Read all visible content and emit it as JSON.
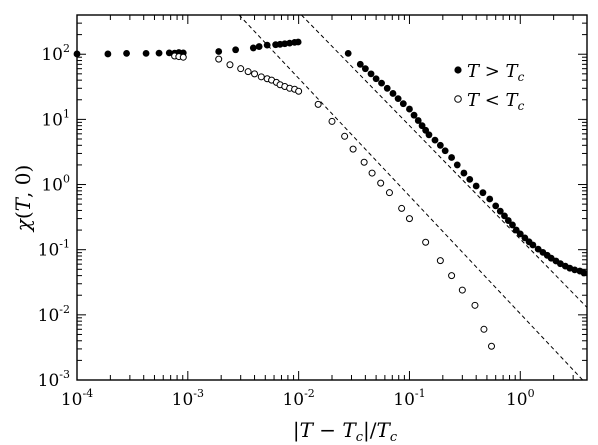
{
  "chart_data": {
    "type": "scatter",
    "x_scale": "log",
    "y_scale": "log",
    "xlim": [
      0.0001,
      4
    ],
    "ylim": [
      0.001,
      400
    ],
    "xlabel": "|T − T_c|/T_c",
    "ylabel": "χ(T, 0)",
    "x_ticks": [
      {
        "value": 0.0001,
        "base": "10",
        "exp": "-4"
      },
      {
        "value": 0.001,
        "base": "10",
        "exp": "-3"
      },
      {
        "value": 0.01,
        "base": "10",
        "exp": "-2"
      },
      {
        "value": 0.1,
        "base": "10",
        "exp": "-1"
      },
      {
        "value": 1,
        "base": "10",
        "exp": "0"
      }
    ],
    "y_ticks": [
      {
        "value": 0.001,
        "base": "10",
        "exp": "-3"
      },
      {
        "value": 0.01,
        "base": "10",
        "exp": "-2"
      },
      {
        "value": 0.1,
        "base": "10",
        "exp": "-1"
      },
      {
        "value": 1,
        "base": "10",
        "exp": "0"
      },
      {
        "value": 10,
        "base": "10",
        "exp": "1"
      },
      {
        "value": 100,
        "base": "10",
        "exp": "2"
      }
    ],
    "grid": false,
    "legend_position": "top-right",
    "series": [
      {
        "name": "T > T_c",
        "marker": "filled-circle",
        "color": "#000000",
        "points": [
          [
            0.0001,
            101
          ],
          [
            0.00019,
            101
          ],
          [
            0.00028,
            103
          ],
          [
            0.00042,
            103
          ],
          [
            0.00055,
            104
          ],
          [
            0.00068,
            105
          ],
          [
            0.00076,
            104
          ],
          [
            0.00083,
            106
          ],
          [
            0.00091,
            105
          ],
          [
            0.0019,
            110
          ],
          [
            0.0027,
            117
          ],
          [
            0.0039,
            125
          ],
          [
            0.0044,
            131
          ],
          [
            0.0052,
            138
          ],
          [
            0.0062,
            140
          ],
          [
            0.0068,
            142
          ],
          [
            0.0075,
            145
          ],
          [
            0.0083,
            148
          ],
          [
            0.0092,
            152
          ],
          [
            0.0099,
            154
          ],
          [
            0.028,
            103
          ],
          [
            0.036,
            70
          ],
          [
            0.04,
            60
          ],
          [
            0.045,
            50
          ],
          [
            0.05,
            42
          ],
          [
            0.056,
            36
          ],
          [
            0.063,
            30
          ],
          [
            0.071,
            25
          ],
          [
            0.079,
            20.8
          ],
          [
            0.088,
            17.4
          ],
          [
            0.1,
            14.4
          ],
          [
            0.11,
            11.6
          ],
          [
            0.12,
            9.6
          ],
          [
            0.13,
            8.0
          ],
          [
            0.14,
            6.8
          ],
          [
            0.15,
            5.8
          ],
          [
            0.17,
            4.8
          ],
          [
            0.19,
            4.0
          ],
          [
            0.21,
            3.3
          ],
          [
            0.24,
            2.6
          ],
          [
            0.27,
            2.0
          ],
          [
            0.31,
            1.5
          ],
          [
            0.35,
            1.2
          ],
          [
            0.4,
            0.95
          ],
          [
            0.46,
            0.75
          ],
          [
            0.53,
            0.6
          ],
          [
            0.6,
            0.47
          ],
          [
            0.66,
            0.39
          ],
          [
            0.72,
            0.33
          ],
          [
            0.78,
            0.28
          ],
          [
            0.85,
            0.24
          ],
          [
            0.92,
            0.2
          ],
          [
            1.0,
            0.175
          ],
          [
            1.1,
            0.152
          ],
          [
            1.2,
            0.132
          ],
          [
            1.3,
            0.118
          ],
          [
            1.45,
            0.102
          ],
          [
            1.6,
            0.091
          ],
          [
            1.75,
            0.082
          ],
          [
            1.9,
            0.074
          ],
          [
            2.1,
            0.067
          ],
          [
            2.3,
            0.061
          ],
          [
            2.55,
            0.056
          ],
          [
            2.8,
            0.052
          ],
          [
            3.1,
            0.049
          ],
          [
            3.45,
            0.047
          ],
          [
            3.75,
            0.044
          ]
        ]
      },
      {
        "name": "T < T_c",
        "marker": "open-circle",
        "color": "#000000",
        "points": [
          [
            0.00076,
            94
          ],
          [
            0.00083,
            92
          ],
          [
            0.00091,
            90
          ],
          [
            0.0019,
            84
          ],
          [
            0.0024,
            69
          ],
          [
            0.003,
            60
          ],
          [
            0.0035,
            54
          ],
          [
            0.004,
            50
          ],
          [
            0.0046,
            45
          ],
          [
            0.0052,
            42
          ],
          [
            0.0057,
            40
          ],
          [
            0.0063,
            37
          ],
          [
            0.0068,
            34
          ],
          [
            0.0075,
            32
          ],
          [
            0.0083,
            30
          ],
          [
            0.0092,
            29
          ],
          [
            0.01,
            27
          ],
          [
            0.015,
            17
          ],
          [
            0.02,
            9.3
          ],
          [
            0.026,
            5.5
          ],
          [
            0.031,
            3.5
          ],
          [
            0.039,
            2.2
          ],
          [
            0.046,
            1.5
          ],
          [
            0.055,
            1.05
          ],
          [
            0.066,
            0.75
          ],
          [
            0.085,
            0.43
          ],
          [
            0.1,
            0.3
          ],
          [
            0.14,
            0.13
          ],
          [
            0.19,
            0.068
          ],
          [
            0.24,
            0.04
          ],
          [
            0.3,
            0.024
          ],
          [
            0.39,
            0.014
          ],
          [
            0.47,
            0.006
          ],
          [
            0.55,
            0.0033
          ]
        ]
      }
    ],
    "reference_lines": [
      {
        "style": "dashed",
        "points": [
          [
            0.0029,
            400
          ],
          [
            4,
            0.00085
          ]
        ]
      },
      {
        "style": "dashed",
        "points": [
          [
            0.0106,
            400
          ],
          [
            4,
            0.013
          ]
        ]
      }
    ]
  }
}
